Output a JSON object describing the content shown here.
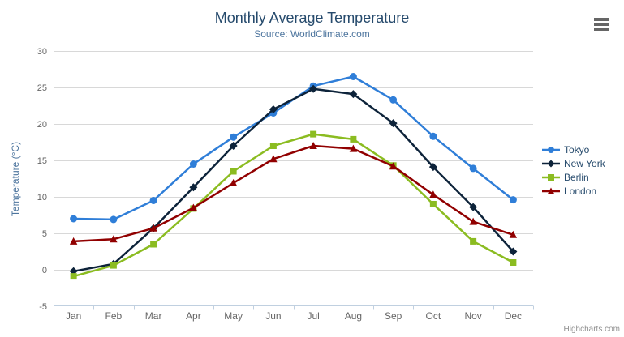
{
  "chart": {
    "title": "Monthly Average Temperature",
    "subtitle": "Source: WorldClimate.com",
    "credits": "Highcharts.com"
  },
  "chart_data": {
    "type": "line",
    "title": "Monthly Average Temperature",
    "subtitle": "Source: WorldClimate.com",
    "categories": [
      "Jan",
      "Feb",
      "Mar",
      "Apr",
      "May",
      "Jun",
      "Jul",
      "Aug",
      "Sep",
      "Oct",
      "Nov",
      "Dec"
    ],
    "xlabel": "",
    "ylabel": "Temperature (°C)",
    "ylim": [
      -5,
      30
    ],
    "ytick_interval": 5,
    "grid": true,
    "legend_position": "right",
    "colors": {
      "grid": "#D8D8D8",
      "axis_line": "#C0D0E0",
      "axis_label": "#666666",
      "title": "#274b6d",
      "subtitle": "#4d759e"
    },
    "series": [
      {
        "name": "Tokyo",
        "color": "#2f7ed8",
        "marker": "circle",
        "values": [
          7.0,
          6.9,
          9.5,
          14.5,
          18.2,
          21.5,
          25.2,
          26.5,
          23.3,
          18.3,
          13.9,
          9.6
        ]
      },
      {
        "name": "New York",
        "color": "#0d233a",
        "marker": "diamond",
        "values": [
          -0.2,
          0.8,
          5.7,
          11.3,
          17.0,
          22.0,
          24.8,
          24.1,
          20.1,
          14.1,
          8.6,
          2.5
        ]
      },
      {
        "name": "Berlin",
        "color": "#8bbc21",
        "marker": "square",
        "values": [
          -0.9,
          0.6,
          3.5,
          8.4,
          13.5,
          17.0,
          18.6,
          17.9,
          14.3,
          9.0,
          3.9,
          1.0
        ]
      },
      {
        "name": "London",
        "color": "#910000",
        "marker": "triangle",
        "values": [
          3.9,
          4.2,
          5.7,
          8.5,
          11.9,
          15.2,
          17.0,
          16.6,
          14.2,
          10.3,
          6.6,
          4.8
        ]
      }
    ]
  }
}
